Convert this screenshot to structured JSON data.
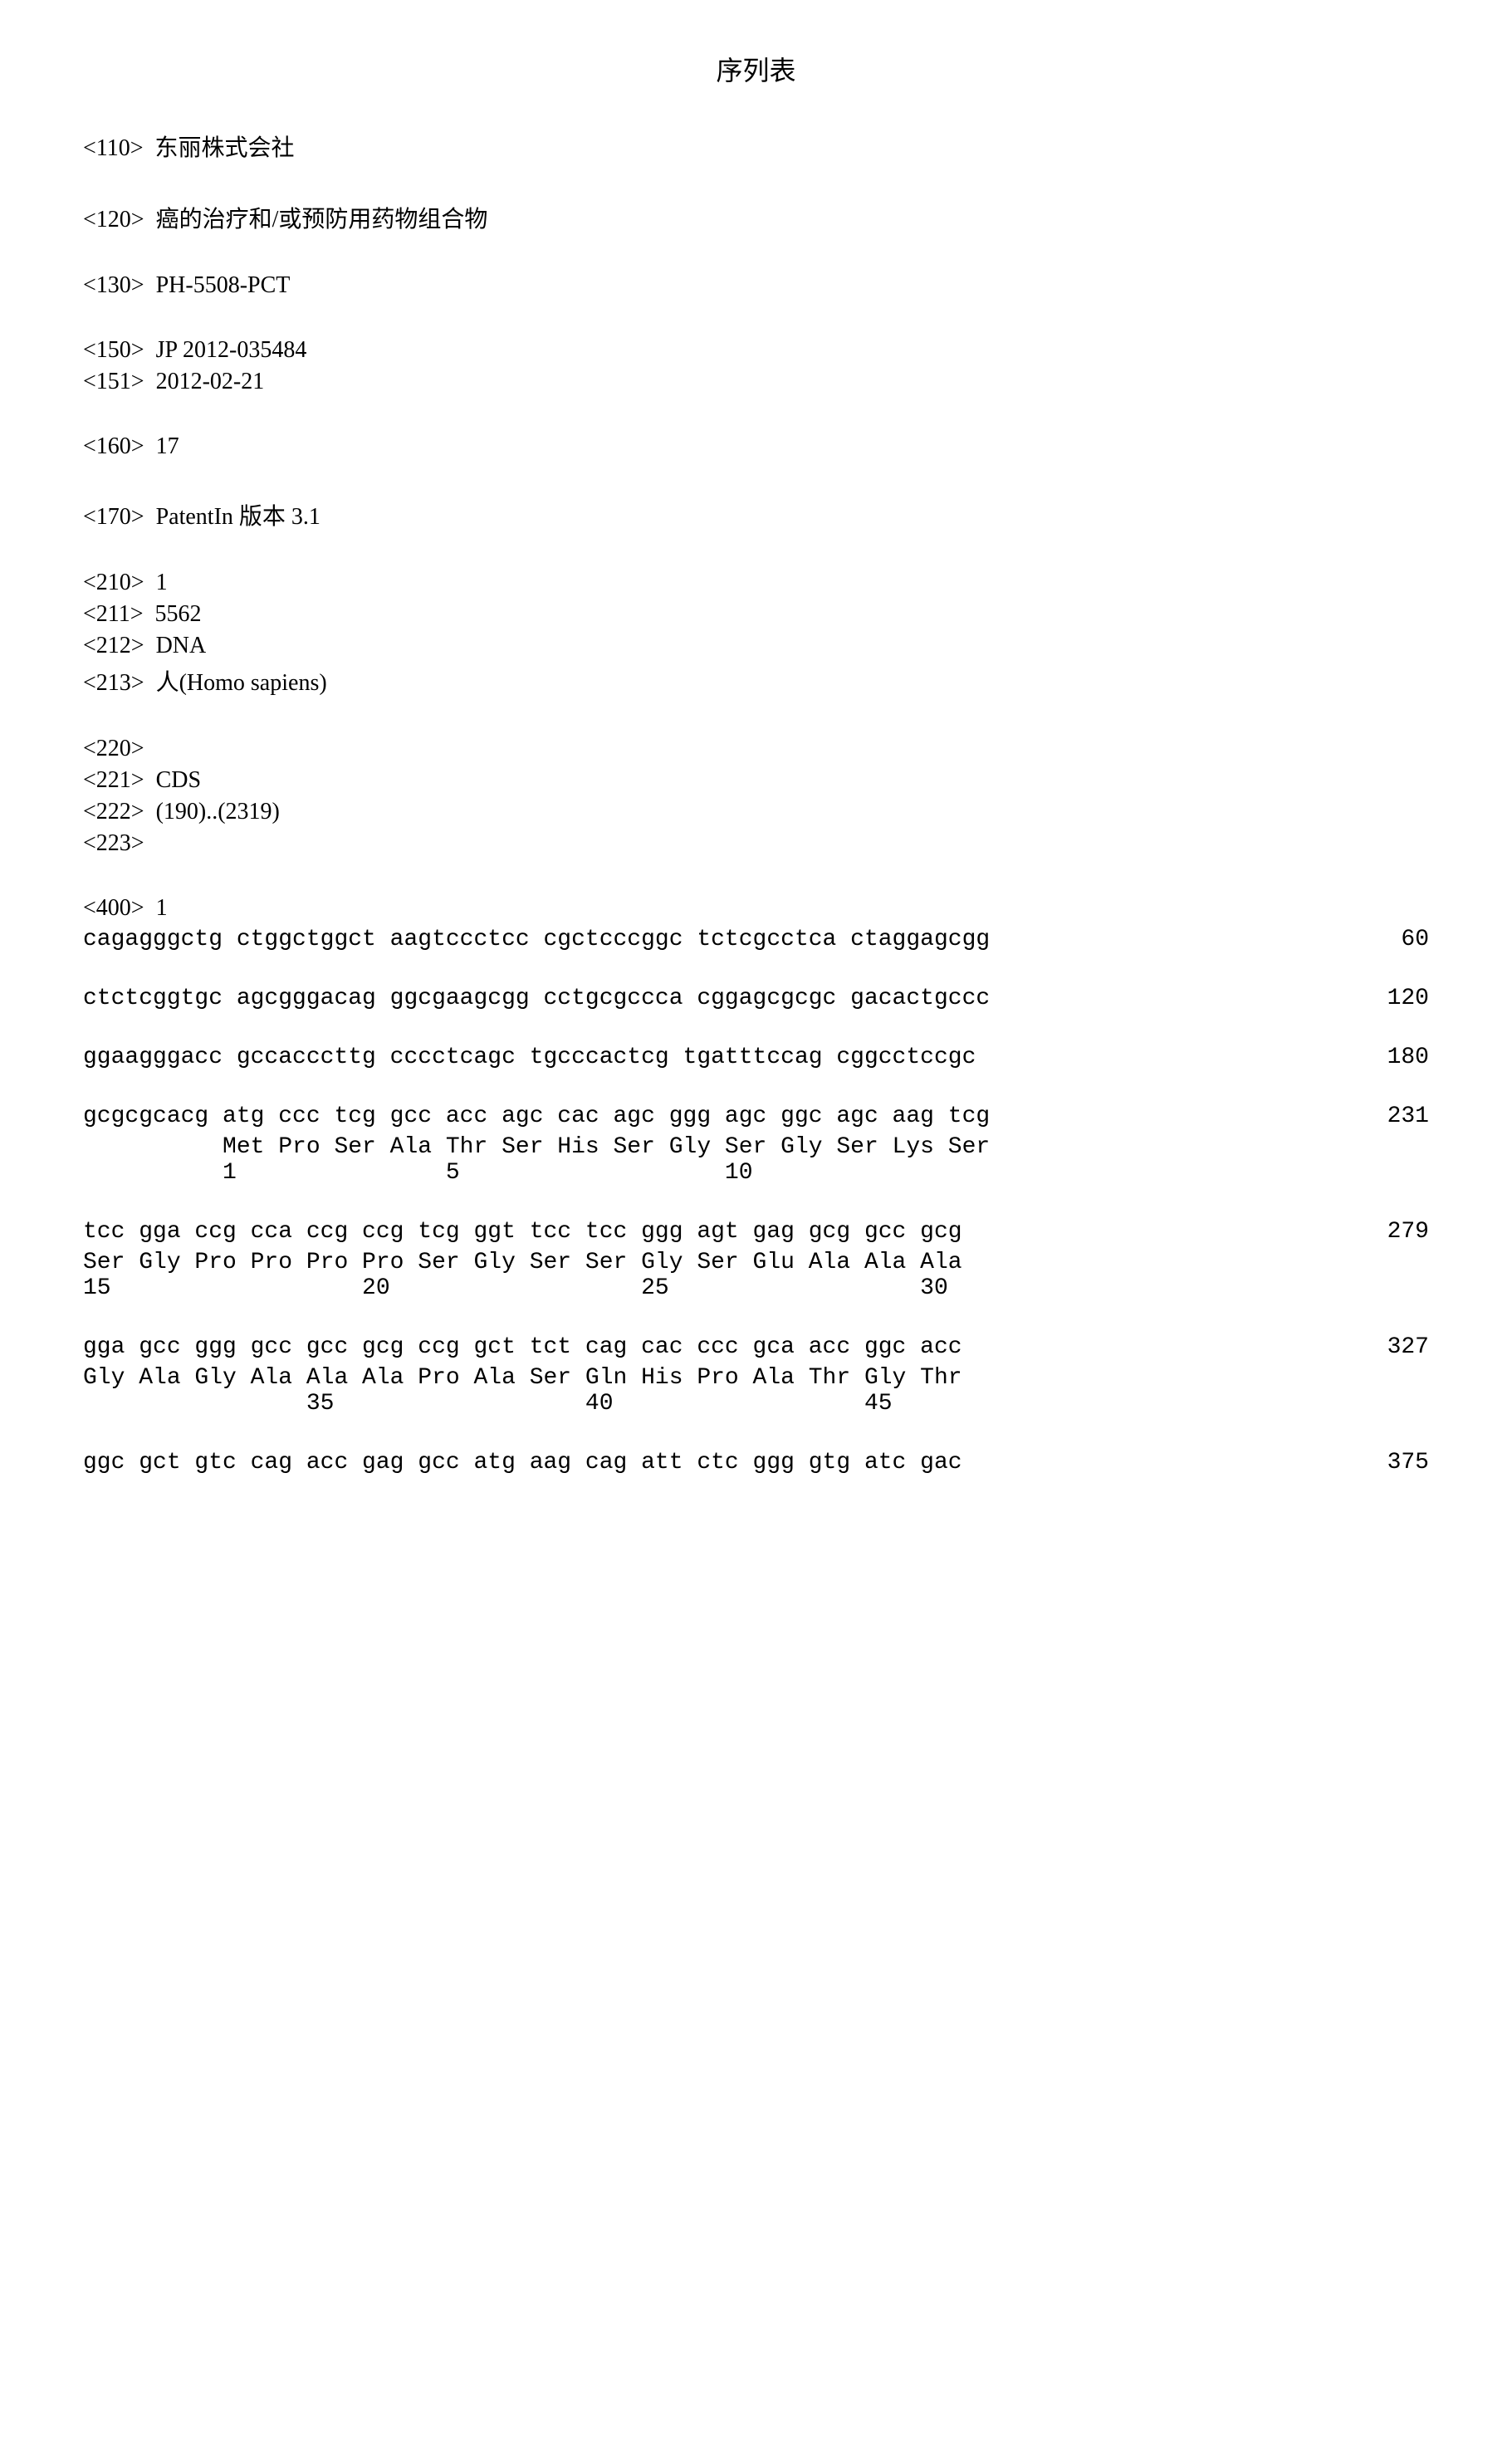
{
  "title": "序列表",
  "fields": {
    "f110": "<110>  东丽株式会社",
    "f120": "<120>  癌的治疗和/或预防用药物组合物",
    "f130": "<130>  PH-5508-PCT",
    "f150": "<150>  JP 2012-035484",
    "f151": "<151>  2012-02-21",
    "f160": "<160>  17",
    "f170": "<170>  PatentIn 版本 3.1",
    "f210": "<210>  1",
    "f211": "<211>  5562",
    "f212": "<212>  DNA",
    "f213": "<213>  人(Homo sapiens)",
    "f220": "<220>",
    "f221": "<221>  CDS",
    "f222": "<222>  (190)..(2319)",
    "f223": "<223>",
    "f400": "<400>  1"
  },
  "sequences": {
    "line1": {
      "text": "cagagggctg ctggctggct aagtccctcc cgctcccggc tctcgcctca ctaggagcgg",
      "num": "60"
    },
    "line2": {
      "text": "ctctcggtgc agcgggacag ggcgaagcgg cctgcgccca cggagcgcgc gacactgccc",
      "num": "120"
    },
    "line3": {
      "text": "ggaagggacc gccacccttg cccctcagc tgcccactcg tgatttccag cggcctccgc",
      "num": "180"
    },
    "block1": {
      "row1": {
        "text": "gcgcgcacg atg ccc tcg gcc acc agc cac agc ggg agc ggc agc aag tcg",
        "num": "231"
      },
      "row2": "          Met Pro Ser Ala Thr Ser His Ser Gly Ser Gly Ser Lys Ser",
      "row3": "          1               5                   10"
    },
    "block2": {
      "row1": {
        "text": "tcc gga ccg cca ccg ccg tcg ggt tcc tcc ggg agt gag gcg gcc gcg",
        "num": "279"
      },
      "row2": "Ser Gly Pro Pro Pro Pro Ser Gly Ser Ser Gly Ser Glu Ala Ala Ala",
      "row3": "15                  20                  25                  30"
    },
    "block3": {
      "row1": {
        "text": "gga gcc ggg gcc gcc gcg ccg gct tct cag cac ccc gca acc ggc acc",
        "num": "327"
      },
      "row2": "Gly Ala Gly Ala Ala Ala Pro Ala Ser Gln His Pro Ala Thr Gly Thr",
      "row3": "                35                  40                  45"
    },
    "block4": {
      "row1": {
        "text": "ggc gct gtc cag acc gag gcc atg aag cag att ctc ggg gtg atc gac",
        "num": "375"
      }
    }
  }
}
